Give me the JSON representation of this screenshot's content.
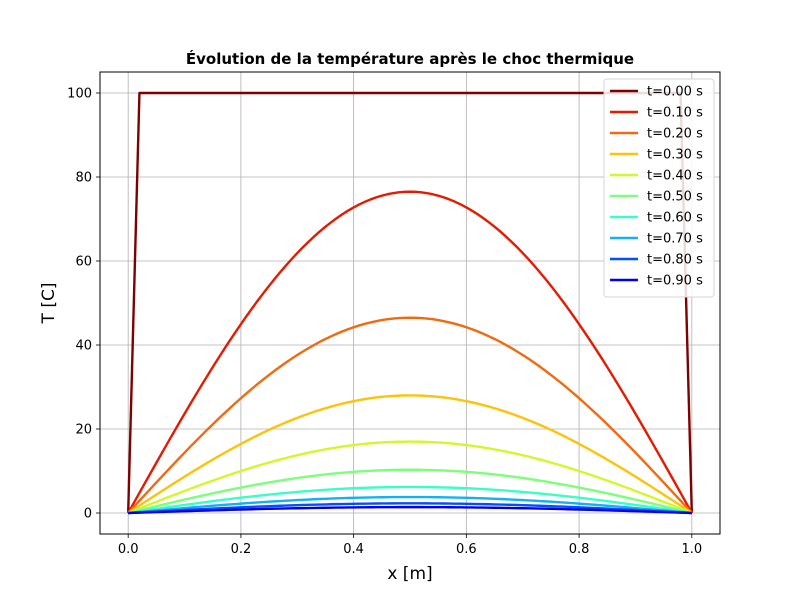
{
  "chart_data": {
    "type": "line",
    "title": "Évolution de la température après le choc thermique",
    "xlabel": "x [m]",
    "ylabel": "T [C]",
    "xlim": [
      -0.05,
      1.05
    ],
    "ylim": [
      -5,
      105
    ],
    "xticks": [
      0.0,
      0.2,
      0.4,
      0.6,
      0.8,
      1.0
    ],
    "xtick_labels": [
      "0.0",
      "0.2",
      "0.4",
      "0.6",
      "0.8",
      "1.0"
    ],
    "yticks": [
      0,
      20,
      40,
      60,
      80,
      100
    ],
    "ytick_labels": [
      "0",
      "20",
      "40",
      "60",
      "80",
      "100"
    ],
    "grid": true,
    "legend_position": "top-right",
    "series": [
      {
        "name": "t=0.00 s",
        "color": "#7f0000",
        "x": [
          0.0,
          0.02,
          0.98,
          1.0
        ],
        "y": [
          0,
          100,
          100,
          0
        ]
      },
      {
        "name": "t=0.10 s",
        "color": "#e51a00",
        "peak": 76.5
      },
      {
        "name": "t=0.20 s",
        "color": "#f26a10",
        "peak": 46.5
      },
      {
        "name": "t=0.30 s",
        "color": "#ffc20a",
        "peak": 28.0
      },
      {
        "name": "t=0.40 s",
        "color": "#d2f72a",
        "peak": 17.0
      },
      {
        "name": "t=0.50 s",
        "color": "#7cff79",
        "peak": 10.3
      },
      {
        "name": "t=0.60 s",
        "color": "#38ffc6",
        "peak": 6.2
      },
      {
        "name": "t=0.70 s",
        "color": "#14b0f4",
        "peak": 3.8
      },
      {
        "name": "t=0.80 s",
        "color": "#0050ff",
        "peak": 2.3
      },
      {
        "name": "t=0.90 s",
        "color": "#0000ee",
        "peak": 1.4
      }
    ]
  }
}
